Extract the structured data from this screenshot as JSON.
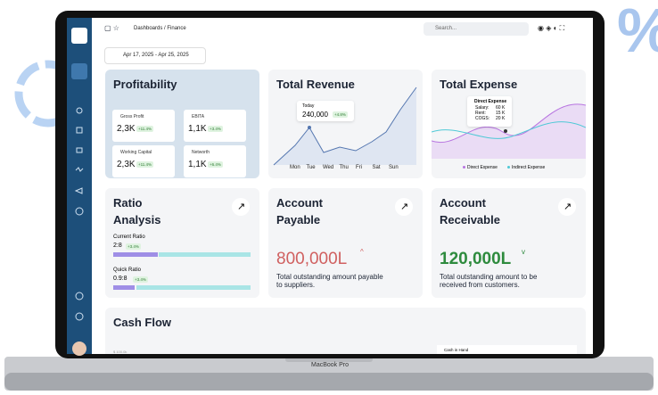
{
  "topbar": {
    "breadcrumb": "Dashboards / Finance",
    "search": "Search...",
    "date_range": "Apr 17, 2025 - Apr 25, 2025"
  },
  "profitability": {
    "title": "Profitability",
    "metrics": [
      {
        "label": "Gross Profit",
        "value": "2,3K",
        "change": "+11.4%"
      },
      {
        "label": "EBITA",
        "value": "1,1K",
        "change": "+3.4%"
      },
      {
        "label": "Working Capital",
        "value": "2,3K",
        "change": "+11.4%"
      },
      {
        "label": "Networth",
        "value": "1,1K",
        "change": "+6.4%"
      }
    ]
  },
  "revenue": {
    "title": "Total Revenue",
    "tooltip": {
      "label": "Today",
      "value": "240,000",
      "change": "+4.8%"
    },
    "days": [
      "Mon",
      "Tue",
      "Wed",
      "Thu",
      "Fri",
      "Sat",
      "Sun"
    ]
  },
  "expense": {
    "title": "Total Expense",
    "tooltip": {
      "title": "Direct Expense",
      "rows": [
        [
          "Salary:",
          "60 K"
        ],
        [
          "Rent:",
          "15 K"
        ],
        [
          "COGS:",
          "20 K"
        ]
      ]
    },
    "legend": [
      "Direct Expense",
      "Indirect Expense"
    ]
  },
  "ratio": {
    "title_line1": "Ratio",
    "title_line2": "Analysis",
    "items": [
      {
        "label": "Current Ratio",
        "value": "2:8",
        "change": "+3.4%"
      },
      {
        "label": "Quick Ratio",
        "value": "0.9:8",
        "change": "+3.4%"
      }
    ]
  },
  "payable": {
    "title_line1": "Account",
    "title_line2": "Payable",
    "amount": "800,000L",
    "description": "Total outstanding amount payable to suppliers."
  },
  "receivable": {
    "title_line1": "Account",
    "title_line2": "Receivable",
    "amount": "120,000L",
    "description": "Total outstanding amount to be received from customers."
  },
  "cashflow": {
    "title": "Cash Flow",
    "axis_label": "$ 100.0k",
    "legend": "Cash in Hand"
  },
  "device": {
    "label": "MacBook Pro"
  }
}
